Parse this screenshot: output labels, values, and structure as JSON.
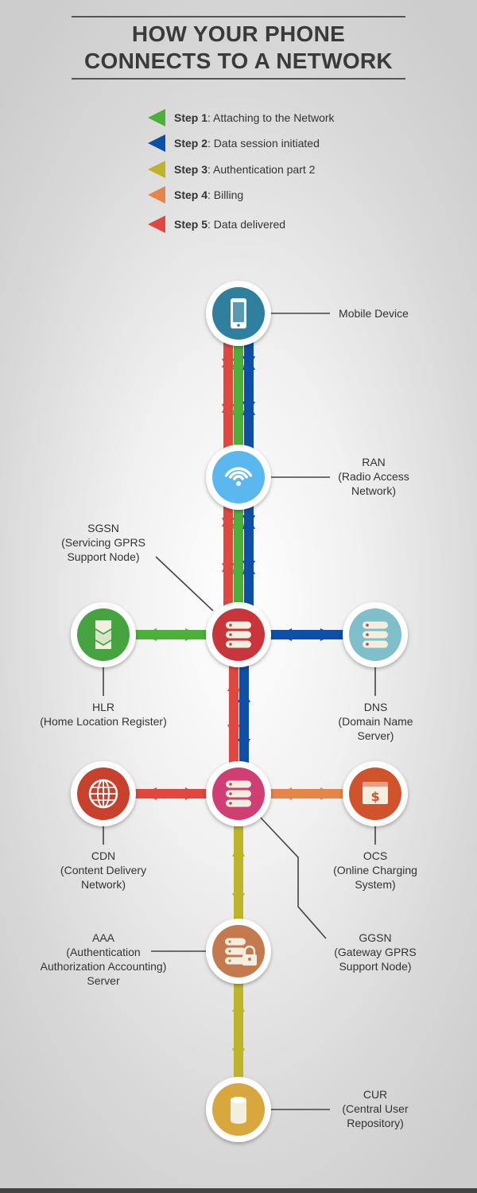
{
  "title": {
    "line1": "HOW YOUR PHONE",
    "line2": "CONNECTS TO A NETWORK"
  },
  "legend": [
    {
      "step": "Step 1",
      "text": ": Attaching to the Network",
      "color": "#4caf3a"
    },
    {
      "step": "Step 2",
      "text": ": Data session initiated",
      "color": "#0d4fa6"
    },
    {
      "step": "Step 3",
      "text": ": Authentication part 2",
      "color": "#bdb527"
    },
    {
      "step": "Step 4",
      "text": ": Billing",
      "color": "#e4854a"
    },
    {
      "step": "Step 5",
      "text": ": Data delivered",
      "color": "#e0473f"
    }
  ],
  "nodes": {
    "mobile": {
      "label": "Mobile Device",
      "icon": "smartphone-icon",
      "color": "#2f7f9e"
    },
    "ran": {
      "label": "RAN\n(Radio Access\nNetwork)",
      "icon": "wifi-icon",
      "color": "#5bb8ee"
    },
    "sgsn": {
      "label": "SGSN\n(Servicing GPRS\nSupport Node)",
      "icon": "server-icon",
      "color": "#c8363c"
    },
    "hlr": {
      "label": "HLR\n(Home Location Register)",
      "icon": "database-stack-icon",
      "color": "#45a340"
    },
    "dns": {
      "label": "DNS\n(Domain Name\nServer)",
      "icon": "server-icon",
      "color": "#7fbfc9"
    },
    "ggsn": {
      "label": "GGSN\n(Gateway GPRS\nSupport Node)",
      "icon": "server-icon",
      "color": "#cf3f74"
    },
    "cdn": {
      "label": "CDN\n(Content Delivery\nNetwork)",
      "icon": "globe-icon",
      "color": "#c8412c"
    },
    "ocs": {
      "label": "OCS\n(Online Charging\nSystem)",
      "icon": "dollar-card-icon",
      "color": "#d1532c"
    },
    "aaa": {
      "label": "AAA\n(Authentication\nAuthorization Accounting)\nServer",
      "icon": "server-lock-icon",
      "color": "#c37a4f"
    },
    "cur": {
      "label": "CUR\n(Central User\nRepository)",
      "icon": "cylinder-icon",
      "color": "#d8a73e"
    }
  }
}
